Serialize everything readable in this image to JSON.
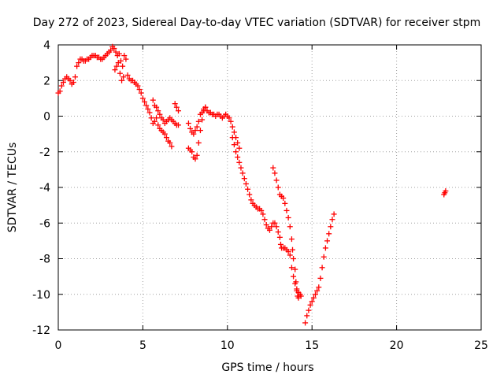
{
  "chart_data": {
    "type": "scatter",
    "title": "Day 272 of 2023, Sidereal Day-to-day VTEC variation (SDTVAR) for receiver stpm",
    "xlabel": "GPS time / hours",
    "ylabel": "SDTVAR / TECUs",
    "xlim": [
      0,
      25
    ],
    "ylim": [
      -12,
      4
    ],
    "xticks": [
      0,
      5,
      10,
      15,
      20,
      25
    ],
    "yticks": [
      4,
      2,
      0,
      -2,
      -4,
      -6,
      -8,
      -10,
      -12
    ],
    "grid": true,
    "marker": "+",
    "color": "#ff0000",
    "series": [
      {
        "name": "SDTVAR",
        "points": [
          [
            0.0,
            1.3
          ],
          [
            0.1,
            1.4
          ],
          [
            0.2,
            1.7
          ],
          [
            0.3,
            1.9
          ],
          [
            0.4,
            2.1
          ],
          [
            0.5,
            2.2
          ],
          [
            0.6,
            2.1
          ],
          [
            0.7,
            2.0
          ],
          [
            0.8,
            1.8
          ],
          [
            0.9,
            1.9
          ],
          [
            1.0,
            2.2
          ],
          [
            1.1,
            2.8
          ],
          [
            1.2,
            3.0
          ],
          [
            1.3,
            3.2
          ],
          [
            1.4,
            3.2
          ],
          [
            1.5,
            3.1
          ],
          [
            1.6,
            3.1
          ],
          [
            1.7,
            3.2
          ],
          [
            1.8,
            3.2
          ],
          [
            1.9,
            3.3
          ],
          [
            2.0,
            3.4
          ],
          [
            2.1,
            3.4
          ],
          [
            2.2,
            3.4
          ],
          [
            2.3,
            3.3
          ],
          [
            2.4,
            3.3
          ],
          [
            2.5,
            3.2
          ],
          [
            2.6,
            3.2
          ],
          [
            2.7,
            3.3
          ],
          [
            2.8,
            3.4
          ],
          [
            2.9,
            3.5
          ],
          [
            3.0,
            3.6
          ],
          [
            3.1,
            3.7
          ],
          [
            3.2,
            3.9
          ],
          [
            3.3,
            3.8
          ],
          [
            3.35,
            2.6
          ],
          [
            3.4,
            3.6
          ],
          [
            3.45,
            2.8
          ],
          [
            3.5,
            3.4
          ],
          [
            3.55,
            3.0
          ],
          [
            3.6,
            3.5
          ],
          [
            3.65,
            2.4
          ],
          [
            3.7,
            3.1
          ],
          [
            3.75,
            2.0
          ],
          [
            3.8,
            2.8
          ],
          [
            3.85,
            2.2
          ],
          [
            3.9,
            3.4
          ],
          [
            4.0,
            3.2
          ],
          [
            4.1,
            2.3
          ],
          [
            4.2,
            2.1
          ],
          [
            4.3,
            2.0
          ],
          [
            4.4,
            2.0
          ],
          [
            4.5,
            1.9
          ],
          [
            4.6,
            1.8
          ],
          [
            4.7,
            1.7
          ],
          [
            4.8,
            1.5
          ],
          [
            4.9,
            1.3
          ],
          [
            5.0,
            1.0
          ],
          [
            5.1,
            0.8
          ],
          [
            5.2,
            0.6
          ],
          [
            5.3,
            0.4
          ],
          [
            5.4,
            0.2
          ],
          [
            5.5,
            -0.1
          ],
          [
            5.6,
            -0.4
          ],
          [
            5.7,
            -0.3
          ],
          [
            5.8,
            -0.1
          ],
          [
            5.9,
            -0.5
          ],
          [
            6.0,
            -0.7
          ],
          [
            6.1,
            -0.8
          ],
          [
            6.2,
            -0.9
          ],
          [
            6.3,
            -1.0
          ],
          [
            6.4,
            -1.2
          ],
          [
            6.5,
            -1.4
          ],
          [
            6.6,
            -1.5
          ],
          [
            6.7,
            -1.7
          ],
          [
            5.6,
            0.9
          ],
          [
            5.7,
            0.6
          ],
          [
            5.8,
            0.5
          ],
          [
            5.9,
            0.3
          ],
          [
            6.0,
            0.1
          ],
          [
            6.1,
            -0.1
          ],
          [
            6.2,
            -0.2
          ],
          [
            6.3,
            -0.4
          ],
          [
            6.4,
            -0.3
          ],
          [
            6.5,
            -0.2
          ],
          [
            6.6,
            -0.1
          ],
          [
            6.7,
            -0.2
          ],
          [
            6.8,
            -0.3
          ],
          [
            6.9,
            -0.4
          ],
          [
            7.0,
            -0.5
          ],
          [
            7.1,
            -0.5
          ],
          [
            6.9,
            0.7
          ],
          [
            7.0,
            0.5
          ],
          [
            7.1,
            0.3
          ],
          [
            7.7,
            -1.8
          ],
          [
            7.8,
            -1.9
          ],
          [
            7.9,
            -2.0
          ],
          [
            8.0,
            -2.3
          ],
          [
            8.1,
            -2.4
          ],
          [
            8.2,
            -2.2
          ],
          [
            8.3,
            -1.5
          ],
          [
            8.4,
            -0.8
          ],
          [
            8.5,
            -0.2
          ],
          [
            8.6,
            0.3
          ],
          [
            8.7,
            0.5
          ],
          [
            7.7,
            -0.4
          ],
          [
            7.8,
            -0.7
          ],
          [
            7.9,
            -0.9
          ],
          [
            8.0,
            -1.0
          ],
          [
            8.1,
            -0.8
          ],
          [
            8.2,
            -0.6
          ],
          [
            8.3,
            -0.3
          ],
          [
            8.4,
            0.1
          ],
          [
            8.5,
            0.2
          ],
          [
            8.6,
            0.4
          ],
          [
            8.7,
            0.5
          ],
          [
            8.8,
            0.3
          ],
          [
            8.9,
            0.2
          ],
          [
            9.0,
            0.2
          ],
          [
            9.1,
            0.1
          ],
          [
            9.2,
            0.1
          ],
          [
            9.3,
            0.0
          ],
          [
            9.4,
            0.1
          ],
          [
            9.5,
            0.1
          ],
          [
            9.6,
            0.0
          ],
          [
            9.7,
            -0.1
          ],
          [
            9.8,
            0.0
          ],
          [
            9.9,
            0.1
          ],
          [
            10.0,
            0.0
          ],
          [
            10.1,
            -0.1
          ],
          [
            10.2,
            -0.3
          ],
          [
            10.3,
            -0.6
          ],
          [
            10.4,
            -0.9
          ],
          [
            10.5,
            -1.2
          ],
          [
            10.6,
            -1.5
          ],
          [
            10.7,
            -1.8
          ],
          [
            10.3,
            -1.2
          ],
          [
            10.4,
            -1.6
          ],
          [
            10.5,
            -2.0
          ],
          [
            10.6,
            -2.3
          ],
          [
            10.7,
            -2.6
          ],
          [
            10.8,
            -2.9
          ],
          [
            10.9,
            -3.2
          ],
          [
            11.0,
            -3.5
          ],
          [
            11.1,
            -3.8
          ],
          [
            11.2,
            -4.1
          ],
          [
            11.3,
            -4.4
          ],
          [
            11.4,
            -4.7
          ],
          [
            11.5,
            -4.9
          ],
          [
            11.6,
            -5.0
          ],
          [
            11.7,
            -5.1
          ],
          [
            11.8,
            -5.2
          ],
          [
            11.9,
            -5.2
          ],
          [
            12.0,
            -5.3
          ],
          [
            12.1,
            -5.5
          ],
          [
            12.2,
            -5.8
          ],
          [
            12.3,
            -6.1
          ],
          [
            12.4,
            -6.3
          ],
          [
            12.5,
            -6.4
          ],
          [
            12.6,
            -6.2
          ],
          [
            12.7,
            -6.0
          ],
          [
            12.8,
            -6.0
          ],
          [
            12.9,
            -6.2
          ],
          [
            13.0,
            -6.5
          ],
          [
            13.1,
            -6.8
          ],
          [
            13.15,
            -7.2
          ],
          [
            13.2,
            -7.4
          ],
          [
            13.3,
            -7.4
          ],
          [
            13.4,
            -7.4
          ],
          [
            13.5,
            -7.5
          ],
          [
            13.6,
            -7.6
          ],
          [
            12.7,
            -2.9
          ],
          [
            12.8,
            -3.2
          ],
          [
            12.9,
            -3.6
          ],
          [
            13.0,
            -4.0
          ],
          [
            13.1,
            -4.4
          ],
          [
            13.2,
            -4.5
          ],
          [
            13.3,
            -4.6
          ],
          [
            13.4,
            -4.9
          ],
          [
            13.5,
            -5.3
          ],
          [
            13.6,
            -5.7
          ],
          [
            13.7,
            -6.2
          ],
          [
            13.8,
            -6.9
          ],
          [
            13.85,
            -7.5
          ],
          [
            13.9,
            -8.0
          ],
          [
            14.0,
            -8.6
          ],
          [
            14.05,
            -9.3
          ],
          [
            14.1,
            -9.8
          ],
          [
            14.15,
            -10.1
          ],
          [
            14.2,
            -10.2
          ],
          [
            13.7,
            -7.8
          ],
          [
            13.8,
            -8.5
          ],
          [
            13.9,
            -9.0
          ],
          [
            14.0,
            -9.4
          ],
          [
            14.1,
            -9.7
          ],
          [
            14.2,
            -9.9
          ],
          [
            14.3,
            -10.0
          ],
          [
            14.35,
            -10.1
          ],
          [
            14.6,
            -11.6
          ],
          [
            14.7,
            -11.2
          ],
          [
            14.8,
            -10.9
          ],
          [
            14.9,
            -10.6
          ],
          [
            15.0,
            -10.4
          ],
          [
            15.1,
            -10.2
          ],
          [
            15.2,
            -10.0
          ],
          [
            15.3,
            -9.8
          ],
          [
            15.4,
            -9.6
          ],
          [
            15.5,
            -9.1
          ],
          [
            15.6,
            -8.5
          ],
          [
            15.7,
            -7.9
          ],
          [
            15.8,
            -7.4
          ],
          [
            15.9,
            -7.0
          ],
          [
            16.0,
            -6.6
          ],
          [
            16.1,
            -6.2
          ],
          [
            16.2,
            -5.8
          ],
          [
            16.3,
            -5.5
          ],
          [
            22.8,
            -4.4
          ],
          [
            22.85,
            -4.3
          ],
          [
            22.9,
            -4.2
          ]
        ]
      }
    ]
  }
}
